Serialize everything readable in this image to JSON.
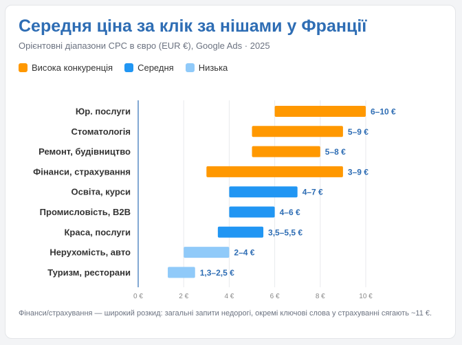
{
  "title": "Середня ціна за клік за нішами у Франції",
  "subtitle": "Орієнтовні діапазони CPC в євро (EUR €), Google Ads · 2025",
  "legend": [
    {
      "label": "Висока конкуренція",
      "color": "#ff9800"
    },
    {
      "label": "Середня",
      "color": "#2196f3"
    },
    {
      "label": "Низька",
      "color": "#90caf9"
    }
  ],
  "note": "Фінанси/страхування — широкий розкид: загальні запити недорогі, окремі ключові слова у страхуванні сягають ~11 €.",
  "chart_data": {
    "type": "bar",
    "orientation": "horizontal-range",
    "title": "Середня ціна за клік за нішами у Франції",
    "subtitle": "Орієнтовні діапазони CPC в євро (EUR €), Google Ads · 2025",
    "xlim": [
      0,
      10
    ],
    "x_ticks": [
      "0 €",
      "2 €",
      "4 €",
      "6 €",
      "8 €",
      "10 €"
    ],
    "x_tick_values": [
      0,
      2,
      4,
      6,
      8,
      10
    ],
    "grid": true,
    "legend_position": "top-left",
    "categories": [
      "Юр. послуги",
      "Стоматологія",
      "Ремонт, будівництво",
      "Фінанси, страхування",
      "Освіта, курси",
      "Промисловість, B2B",
      "Краса, послуги",
      "Нерухомість, авто",
      "Туризм, ресторани"
    ],
    "ranges": [
      {
        "min": 6,
        "max": 10,
        "label": "6–10 €",
        "level": 0
      },
      {
        "min": 5,
        "max": 9,
        "label": "5–9 €",
        "level": 0
      },
      {
        "min": 5,
        "max": 8,
        "label": "5–8 €",
        "level": 0
      },
      {
        "min": 3,
        "max": 9,
        "label": "3–9 €",
        "level": 0
      },
      {
        "min": 4,
        "max": 7,
        "label": "4–7 €",
        "level": 1
      },
      {
        "min": 4,
        "max": 6,
        "label": "4–6 €",
        "level": 1
      },
      {
        "min": 3.5,
        "max": 5.5,
        "label": "3,5–5,5 €",
        "level": 1
      },
      {
        "min": 2,
        "max": 4,
        "label": "2–4 €",
        "level": 2
      },
      {
        "min": 1.3,
        "max": 2.5,
        "label": "1,3–2,5 €",
        "level": 2
      }
    ]
  }
}
